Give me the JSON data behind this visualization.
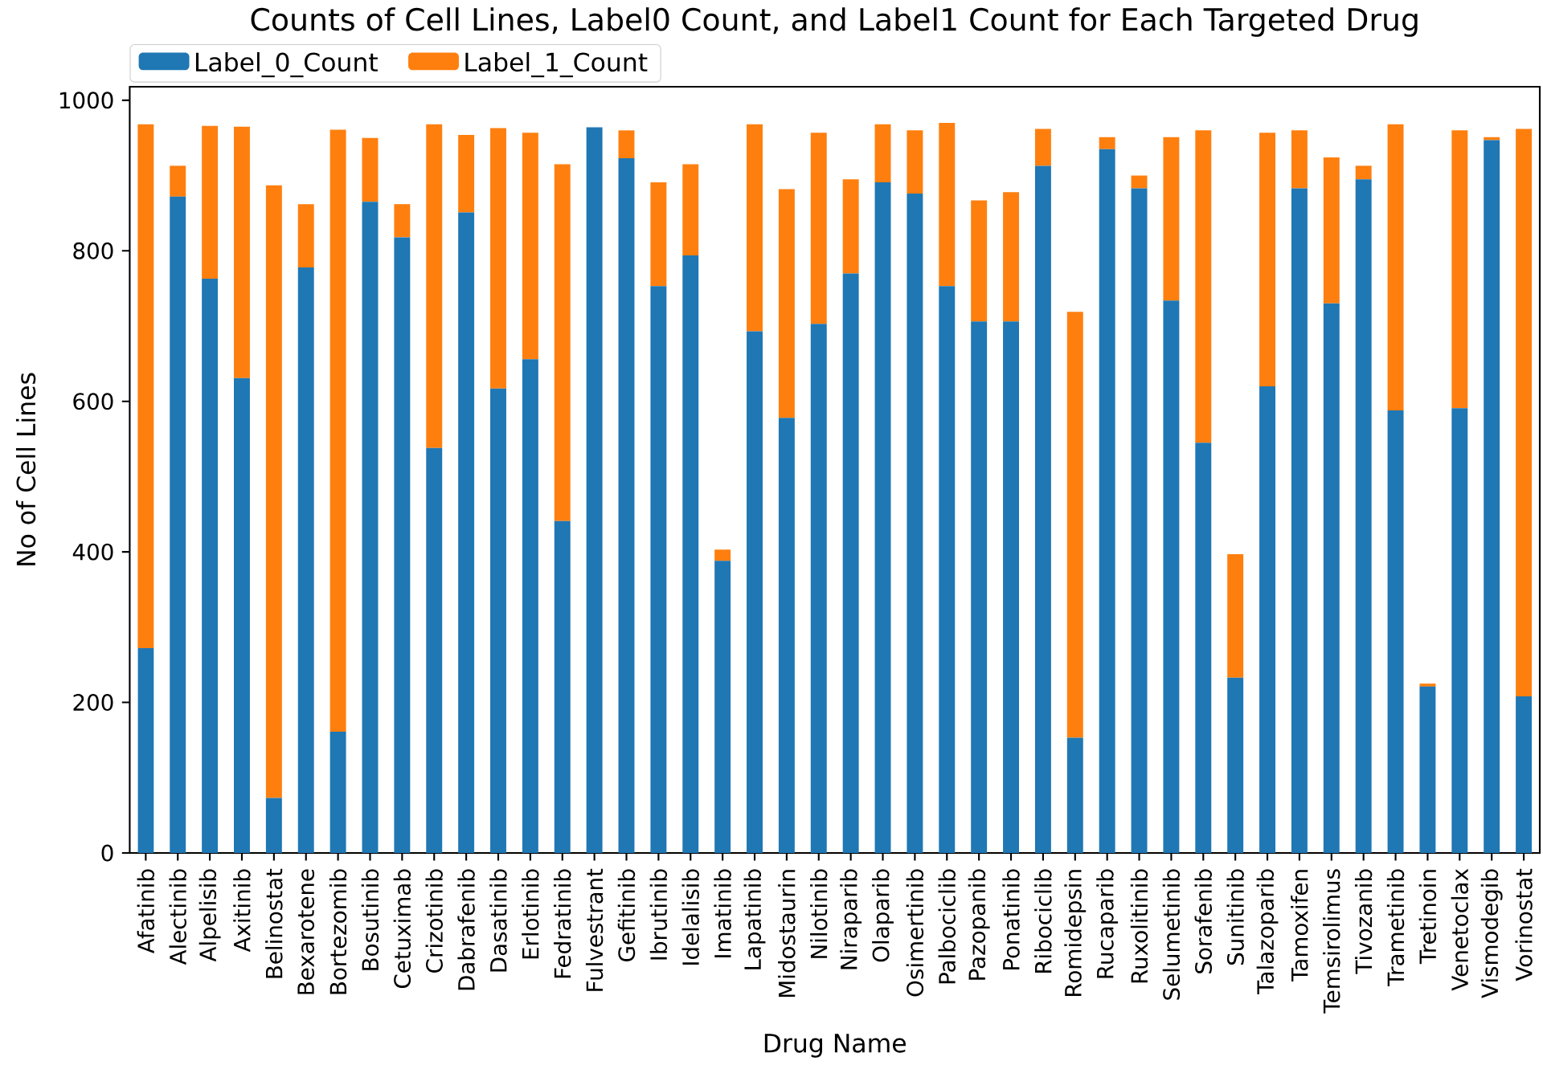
{
  "chart_data": {
    "type": "bar",
    "title": "Counts of Cell Lines, Label0 Count, and Label1 Count for Each Targeted Drug",
    "xlabel": "Drug Name",
    "ylabel": "No of Cell Lines",
    "categories": [
      "Afatinib",
      "Alectinib",
      "Alpelisib",
      "Axitinib",
      "Belinostat",
      "Bexarotene",
      "Bortezomib",
      "Bosutinib",
      "Cetuximab",
      "Crizotinib",
      "Dabrafenib",
      "Dasatinib",
      "Erlotinib",
      "Fedratinib",
      "Fulvestrant",
      "Gefitinib",
      "Ibrutinib",
      "Idelalisib",
      "Imatinib",
      "Lapatinib",
      "Midostaurin",
      "Nilotinib",
      "Niraparib",
      "Olaparib",
      "Osimertinib",
      "Palbociclib",
      "Pazopanib",
      "Ponatinib",
      "Ribociclib",
      "Romidepsin",
      "Rucaparib",
      "Ruxolitinib",
      "Selumetinib",
      "Sorafenib",
      "Sunitinib",
      "Talazoparib",
      "Tamoxifen",
      "Temsirolimus",
      "Tivozanib",
      "Trametinib",
      "Tretinoin",
      "Venetoclax",
      "Vismodegib",
      "Vorinostat"
    ],
    "series": [
      {
        "name": "Label_0_Count",
        "color": "#1f77b4",
        "values": [
          272,
          872,
          763,
          631,
          73,
          778,
          161,
          865,
          818,
          538,
          851,
          617,
          656,
          441,
          964,
          923,
          753,
          794,
          388,
          693,
          578,
          703,
          770,
          891,
          876,
          753,
          706,
          706,
          913,
          153,
          935,
          883,
          734,
          545,
          233,
          620,
          883,
          730,
          895,
          588,
          221,
          591,
          947,
          208
        ]
      },
      {
        "name": "Label_1_Count",
        "color": "#ff7f0e",
        "values": [
          696,
          41,
          203,
          334,
          814,
          84,
          800,
          85,
          44,
          430,
          103,
          346,
          301,
          474,
          0,
          37,
          138,
          121,
          15,
          275,
          304,
          254,
          125,
          77,
          84,
          217,
          161,
          172,
          49,
          566,
          16,
          17,
          217,
          415,
          164,
          337,
          77,
          194,
          18,
          380,
          4,
          369,
          4,
          754
        ]
      }
    ],
    "stacked": true,
    "ylim": [
      0,
      1018
    ],
    "yticks": [
      0,
      200,
      400,
      600,
      800,
      1000
    ],
    "legend": "top left"
  }
}
